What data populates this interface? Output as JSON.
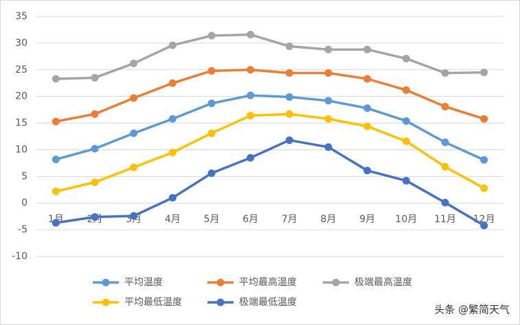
{
  "chart_data": {
    "type": "line",
    "categories": [
      "1月",
      "2月",
      "3月",
      "4月",
      "5月",
      "6月",
      "7月",
      "8月",
      "9月",
      "10月",
      "11月",
      "12月"
    ],
    "series": [
      {
        "name": "平均温度",
        "color": "#5b9bd5",
        "values": [
          8.2,
          10.2,
          13.1,
          15.8,
          18.7,
          20.2,
          19.9,
          19.2,
          17.8,
          15.4,
          11.4,
          8.1
        ]
      },
      {
        "name": "平均最高温度",
        "color": "#ed7d31",
        "values": [
          15.3,
          16.7,
          19.7,
          22.5,
          24.8,
          25.0,
          24.4,
          24.4,
          23.3,
          21.2,
          18.1,
          15.8
        ]
      },
      {
        "name": "极端最高温度",
        "color": "#a5a5a5",
        "values": [
          23.3,
          23.5,
          26.2,
          29.6,
          31.4,
          31.6,
          29.4,
          28.8,
          28.8,
          27.1,
          24.4,
          24.5
        ]
      },
      {
        "name": "平均最低温度",
        "color": "#ffc000",
        "values": [
          2.2,
          3.9,
          6.7,
          9.5,
          13.1,
          16.4,
          16.7,
          15.8,
          14.4,
          11.6,
          6.8,
          2.8
        ]
      },
      {
        "name": "极端最低温度",
        "color": "#4472c4",
        "values": [
          -3.7,
          -2.6,
          -2.4,
          1.0,
          5.6,
          8.5,
          11.8,
          10.5,
          6.1,
          4.2,
          0.1,
          -4.2
        ]
      }
    ],
    "ylim": [
      -10,
      35
    ],
    "yticks": [
      -10,
      -5,
      0,
      5,
      10,
      15,
      20,
      25,
      30,
      35
    ],
    "grid": true,
    "legend": "bottom",
    "watermark": "头条 @繁简天气"
  }
}
